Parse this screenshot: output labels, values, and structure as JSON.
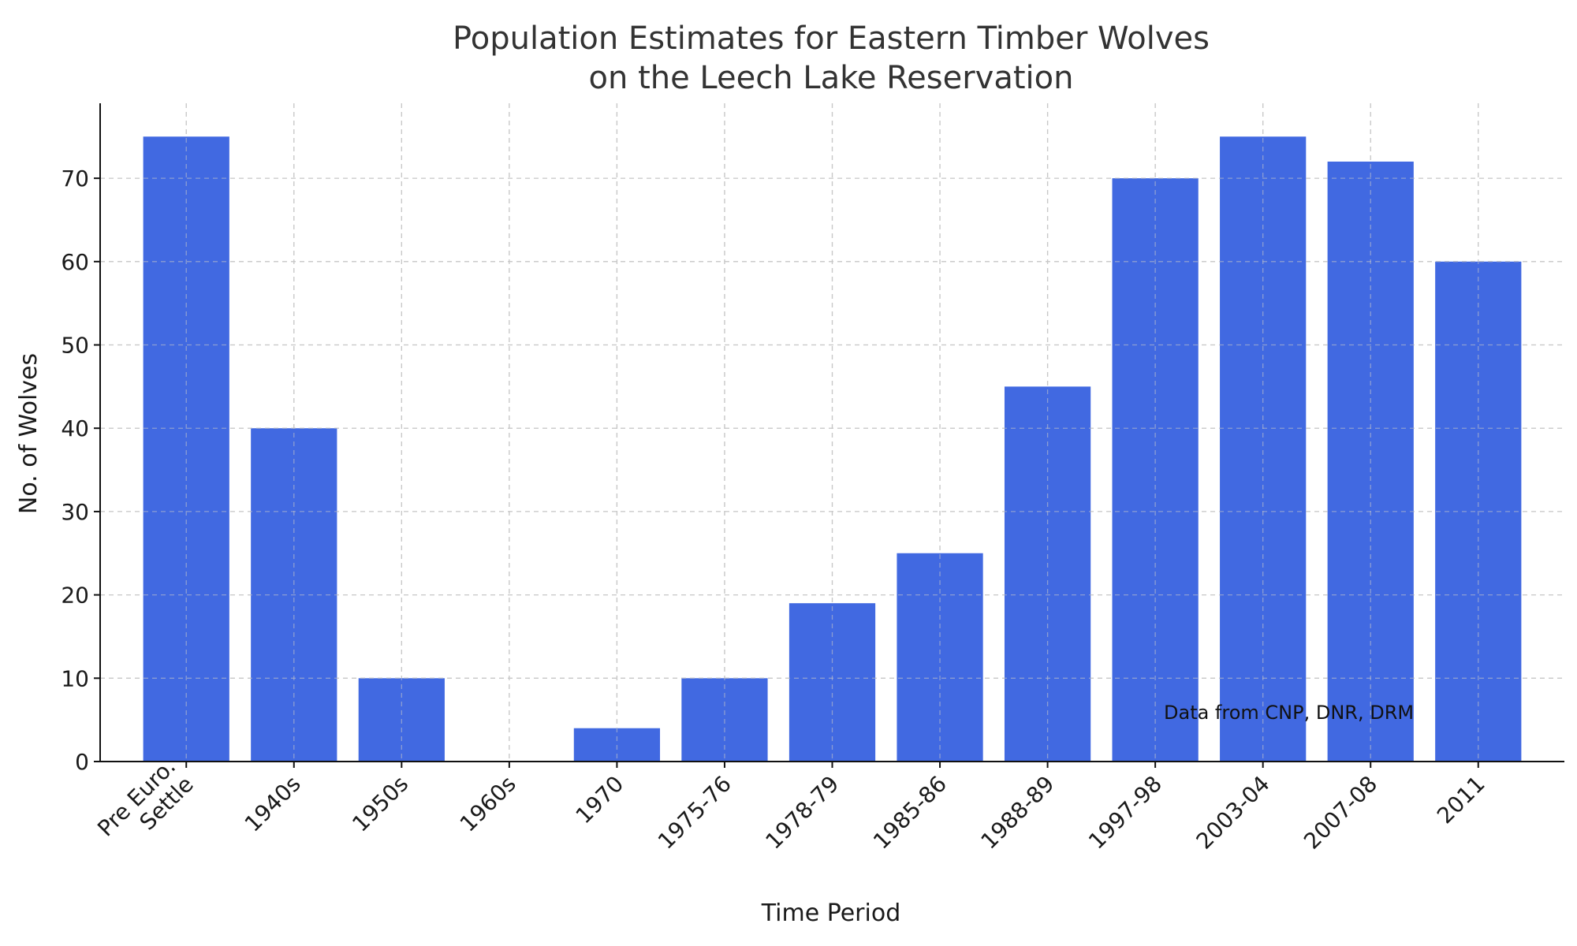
{
  "chart_data": {
    "type": "bar",
    "title": [
      "Population Estimates for Eastern Timber Wolves",
      "on the Leech Lake Reservation"
    ],
    "xlabel": "Time Period",
    "ylabel": "No. of Wolves",
    "categories": [
      [
        "Pre Euro.",
        "Settle"
      ],
      [
        "1940s"
      ],
      [
        "1950s"
      ],
      [
        "1960s"
      ],
      [
        "1970"
      ],
      [
        "1975-76"
      ],
      [
        "1978-79"
      ],
      [
        "1985-86"
      ],
      [
        "1988-89"
      ],
      [
        "1997-98"
      ],
      [
        "2003-04"
      ],
      [
        "2007-08"
      ],
      [
        "2011"
      ]
    ],
    "values": [
      75,
      40,
      10,
      0,
      4,
      10,
      19,
      25,
      45,
      70,
      75,
      72,
      60
    ],
    "ylim": [
      0,
      79
    ],
    "yticks": [
      0,
      10,
      20,
      30,
      40,
      50,
      60,
      70
    ],
    "grid": true,
    "bar_color": "#4169e1",
    "annotation": "Data from CNP, DNR, DRM"
  }
}
